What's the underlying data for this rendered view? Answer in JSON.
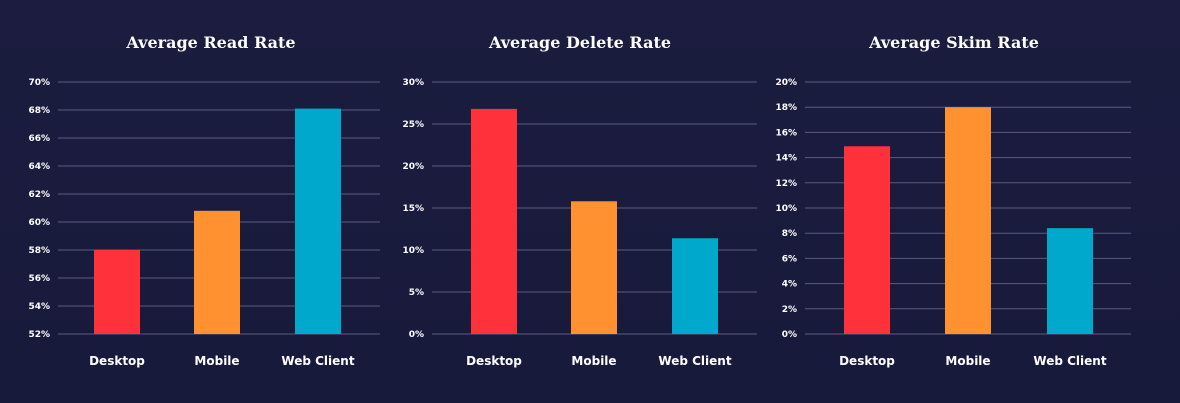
{
  "colors": {
    "background": "#1a1b3e",
    "gridline": "#5a5b7e",
    "text": "#ffffff",
    "desktop": "#ff323c",
    "mobile": "#ff9130",
    "web_client": "#00a8cc"
  },
  "chart_data": [
    {
      "type": "bar",
      "title": "Average Read Rate",
      "categories": [
        "Desktop",
        "Mobile",
        "Web Client"
      ],
      "values": [
        58,
        60.8,
        68.1
      ],
      "colors": [
        "#ff323c",
        "#ff9130",
        "#00a8cc"
      ],
      "ylim": [
        52,
        70
      ],
      "yticks": [
        52,
        54,
        56,
        58,
        60,
        62,
        64,
        66,
        68,
        70
      ],
      "tick_labels": [
        "52%",
        "54%",
        "56%",
        "58%",
        "60%",
        "62%",
        "64%",
        "66%",
        "68%",
        "70%"
      ],
      "xlabel": "",
      "ylabel": "",
      "grid": true
    },
    {
      "type": "bar",
      "title": "Average Delete Rate",
      "categories": [
        "Desktop",
        "Mobile",
        "Web Client"
      ],
      "values": [
        26.8,
        15.8,
        11.4
      ],
      "colors": [
        "#ff323c",
        "#ff9130",
        "#00a8cc"
      ],
      "ylim": [
        0,
        30
      ],
      "yticks": [
        0,
        5,
        10,
        15,
        20,
        25,
        30
      ],
      "tick_labels": [
        "0%",
        "5%",
        "10%",
        "15%",
        "20%",
        "25%",
        "30%"
      ],
      "xlabel": "",
      "ylabel": "",
      "grid": true
    },
    {
      "type": "bar",
      "title": "Average Skim Rate",
      "categories": [
        "Desktop",
        "Mobile",
        "Web Client"
      ],
      "values": [
        14.9,
        18,
        8.4
      ],
      "colors": [
        "#ff323c",
        "#ff9130",
        "#00a8cc"
      ],
      "ylim": [
        0,
        20
      ],
      "yticks": [
        0,
        2,
        4,
        6,
        8,
        10,
        12,
        14,
        16,
        18,
        20
      ],
      "tick_labels": [
        "0%",
        "2%",
        "4%",
        "6%",
        "8%",
        "10%",
        "12%",
        "14%",
        "16%",
        "18%",
        "20%"
      ],
      "xlabel": "",
      "ylabel": "",
      "grid": true
    }
  ]
}
